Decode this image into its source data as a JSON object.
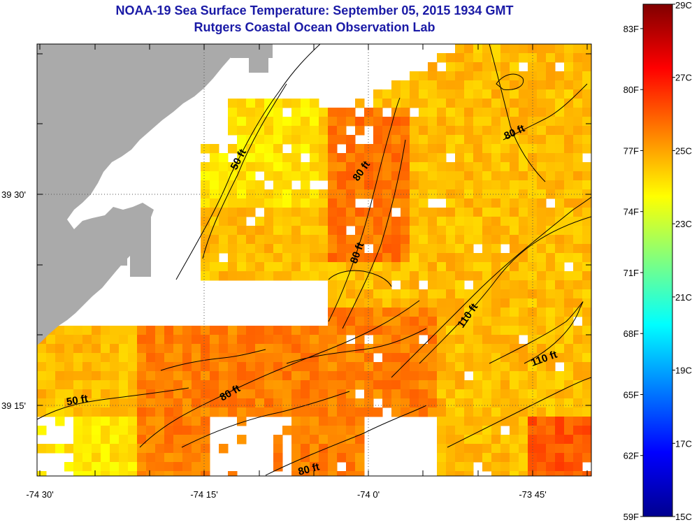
{
  "header": {
    "title": "NOAA-19 Sea Surface Temperature:  September 05, 2015 1934 GMT",
    "subtitle": "Rutgers Coastal Ocean Observation Lab"
  },
  "map": {
    "lat_labels": [
      "39 30'",
      "39 15'"
    ],
    "lon_labels": [
      "-74 30'",
      "-74 15'",
      "-74 0'",
      "-73 45'"
    ],
    "depth_contours": [
      {
        "label": "50 ft"
      },
      {
        "label": "80 ft"
      },
      {
        "label": "80 ft"
      },
      {
        "label": "80 ft"
      },
      {
        "label": "50 ft"
      },
      {
        "label": "80 ft"
      },
      {
        "label": "110 ft"
      },
      {
        "label": "110 ft"
      },
      {
        "label": "80 ft"
      }
    ],
    "colors": {
      "land": "#aaaaaa",
      "no_data": "#ffffff",
      "contour": "#000000"
    }
  },
  "colorbar": {
    "min_c": 15,
    "max_c": 29,
    "fahrenheit_labels": [
      "83F",
      "80F",
      "77F",
      "74F",
      "71F",
      "68F",
      "65F",
      "62F",
      "59F"
    ],
    "celsius_labels": [
      "29C",
      "27C",
      "25C",
      "23C",
      "21C",
      "19C",
      "17C",
      "15C"
    ]
  }
}
